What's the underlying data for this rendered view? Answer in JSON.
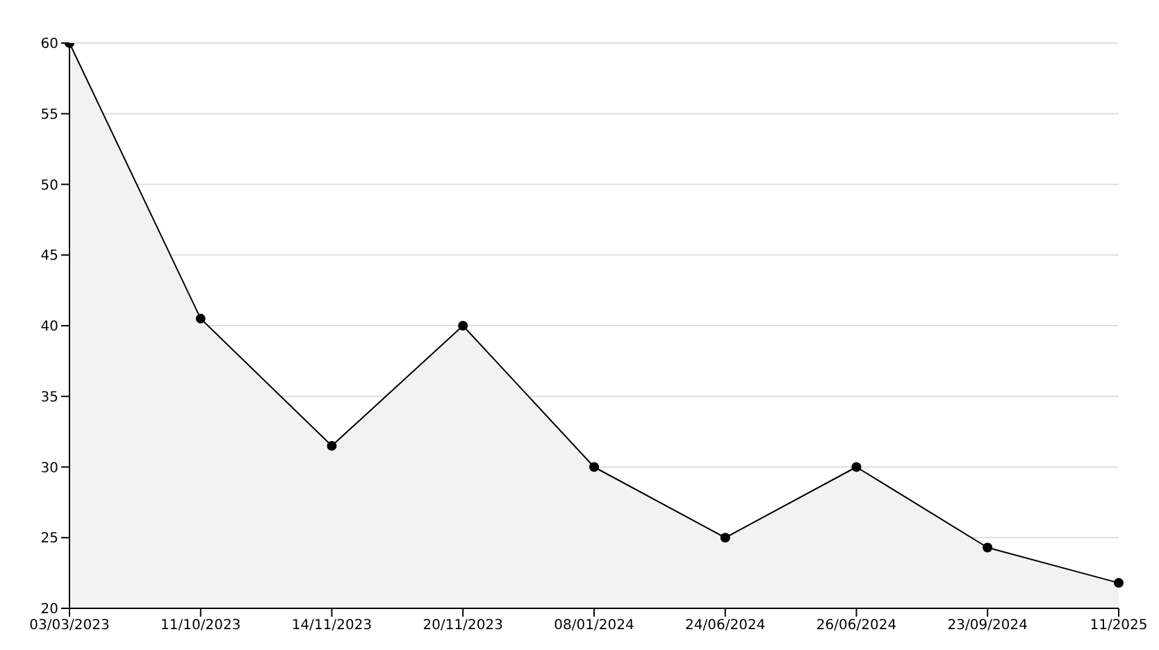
{
  "chart_data": {
    "type": "area",
    "categories": [
      "03/03/2023",
      "11/10/2023",
      "14/11/2023",
      "20/11/2023",
      "08/01/2024",
      "24/06/2024",
      "26/06/2024",
      "23/09/2024",
      "11/2025"
    ],
    "series": [
      {
        "color": "#000000",
        "values": [
          60,
          40.5,
          31.5,
          40,
          30,
          25,
          30,
          24.3,
          21.8
        ]
      }
    ],
    "ylim": [
      20,
      60
    ],
    "yticks": [
      20,
      25,
      30,
      35,
      40,
      45,
      50,
      55,
      60
    ],
    "grid": "y",
    "marker": "circle",
    "line_style": "solid"
  }
}
